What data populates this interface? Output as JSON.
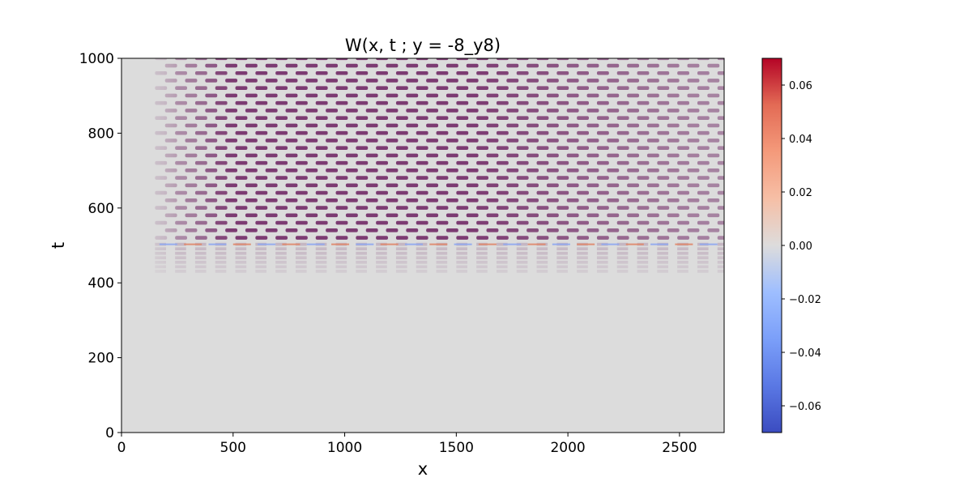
{
  "chart_data": {
    "type": "heatmap",
    "title": "W(x, t ; y = -8_y8)",
    "xlabel": "x",
    "ylabel": "t",
    "xlim": [
      0,
      2700
    ],
    "ylim": [
      0,
      1000
    ],
    "xticks": [
      0,
      500,
      1000,
      1500,
      2000,
      2500
    ],
    "yticks": [
      0,
      200,
      400,
      600,
      800,
      1000
    ],
    "colormap": "coolwarm",
    "colorbar": {
      "vmin": -0.07,
      "vmax": 0.07,
      "ticks": [
        -0.06,
        -0.04,
        -0.02,
        0.0,
        0.02,
        0.04,
        0.06
      ],
      "tick_labels": [
        "−0.06",
        "−0.04",
        "−0.02",
        "0.00",
        "0.02",
        "0.04",
        "0.06"
      ]
    },
    "features": {
      "background_value": 0.0,
      "front_onset_x": 150,
      "oscillation_onset_t": 430,
      "interface_line_t": 503,
      "band_rows_t": [
        520,
        540,
        560,
        580,
        600,
        620,
        640,
        660,
        680,
        700,
        720,
        740,
        760,
        780,
        800,
        820,
        840,
        860,
        880,
        900,
        920,
        940,
        960,
        980,
        1000
      ],
      "band_period_x": 90,
      "band_colors": {
        "dark": "#6b1f5f",
        "light": "#d9d3df"
      }
    },
    "grid": false
  }
}
